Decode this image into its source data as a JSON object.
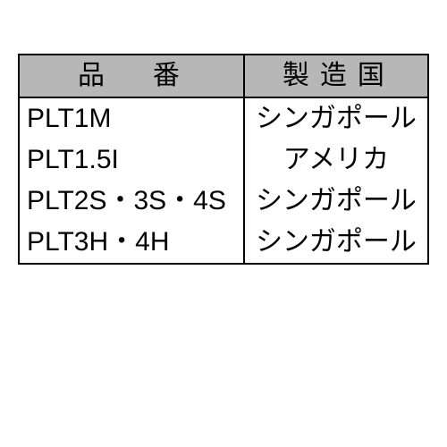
{
  "table": {
    "header_bg": "#b7b7b7",
    "border_color": "#000000",
    "font_size_pt": 22,
    "columns": [
      {
        "label": "品　番",
        "align": "left"
      },
      {
        "label": "製造国",
        "align": "center"
      }
    ],
    "rows": [
      [
        "PLT1M",
        "シンガポール"
      ],
      [
        "PLT1.5I",
        "アメリカ"
      ],
      [
        "PLT2S・3S・4S",
        "シンガポール"
      ],
      [
        "PLT3H・4H",
        "シンガポール"
      ]
    ]
  }
}
